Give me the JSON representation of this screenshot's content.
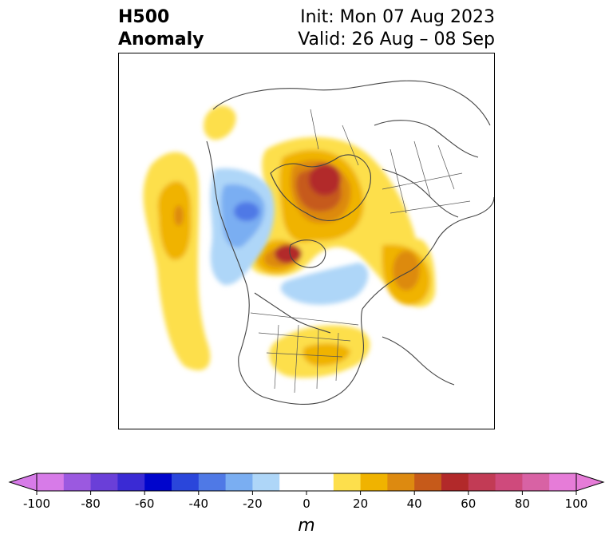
{
  "title": {
    "variable": "H500",
    "subtitle": "Anomaly",
    "init": "Init: Mon 07 Aug 2023",
    "valid": "Valid: 26 Aug – 08 Sep"
  },
  "colorbar": {
    "unit": "m",
    "ticks": [
      "-100",
      "-80",
      "-60",
      "-40",
      "-20",
      "0",
      "20",
      "40",
      "60",
      "80",
      "100"
    ],
    "min": -100,
    "max": 100,
    "bins": [
      {
        "from": -100,
        "to": -90,
        "color": "#d77be8"
      },
      {
        "from": -90,
        "to": -80,
        "color": "#9b59e0"
      },
      {
        "from": -80,
        "to": -70,
        "color": "#6a3fd8"
      },
      {
        "from": -70,
        "to": -60,
        "color": "#3a2ad4"
      },
      {
        "from": -60,
        "to": -50,
        "color": "#0005cc"
      },
      {
        "from": -50,
        "to": -40,
        "color": "#2a46db"
      },
      {
        "from": -40,
        "to": -30,
        "color": "#4f79e6"
      },
      {
        "from": -30,
        "to": -20,
        "color": "#7aaef2"
      },
      {
        "from": -20,
        "to": -10,
        "color": "#aed6f8"
      },
      {
        "from": -10,
        "to": 10,
        "color": "#ffffff"
      },
      {
        "from": 10,
        "to": 20,
        "color": "#fddf4c"
      },
      {
        "from": 20,
        "to": 30,
        "color": "#f0b300"
      },
      {
        "from": 30,
        "to": 40,
        "color": "#dd8a10"
      },
      {
        "from": 40,
        "to": 50,
        "color": "#c65a1a"
      },
      {
        "from": 50,
        "to": 60,
        "color": "#b2292a"
      },
      {
        "from": 60,
        "to": 70,
        "color": "#c23b55"
      },
      {
        "from": 70,
        "to": 80,
        "color": "#cf4a7c"
      },
      {
        "from": 80,
        "to": 90,
        "color": "#d862a4"
      },
      {
        "from": 90,
        "to": 100,
        "color": "#e67cd8"
      }
    ],
    "extend_low_color": "#d77be8",
    "extend_high_color": "#e67cd8"
  },
  "map": {
    "projection": "north-polar-stereographic",
    "coastline_color": "#444444",
    "anomaly_features": [
      {
        "name": "greenland-arctic-ridge",
        "sign": "positive",
        "peak_range": "50-60"
      },
      {
        "name": "hudson-bay-ridge",
        "sign": "positive",
        "peak_range": "50-60"
      },
      {
        "name": "northeast-pacific-ridge",
        "sign": "positive",
        "peak_range": "30-40"
      },
      {
        "name": "central-siberia-ridge",
        "sign": "positive",
        "peak_range": "30-40"
      },
      {
        "name": "eastern-us-ridge",
        "sign": "positive",
        "peak_range": "20-30"
      },
      {
        "name": "western-canada-trough",
        "sign": "negative",
        "peak_range": "-40--30"
      },
      {
        "name": "arctic-archipelago-trough",
        "sign": "negative",
        "peak_range": "-20--10"
      }
    ]
  }
}
